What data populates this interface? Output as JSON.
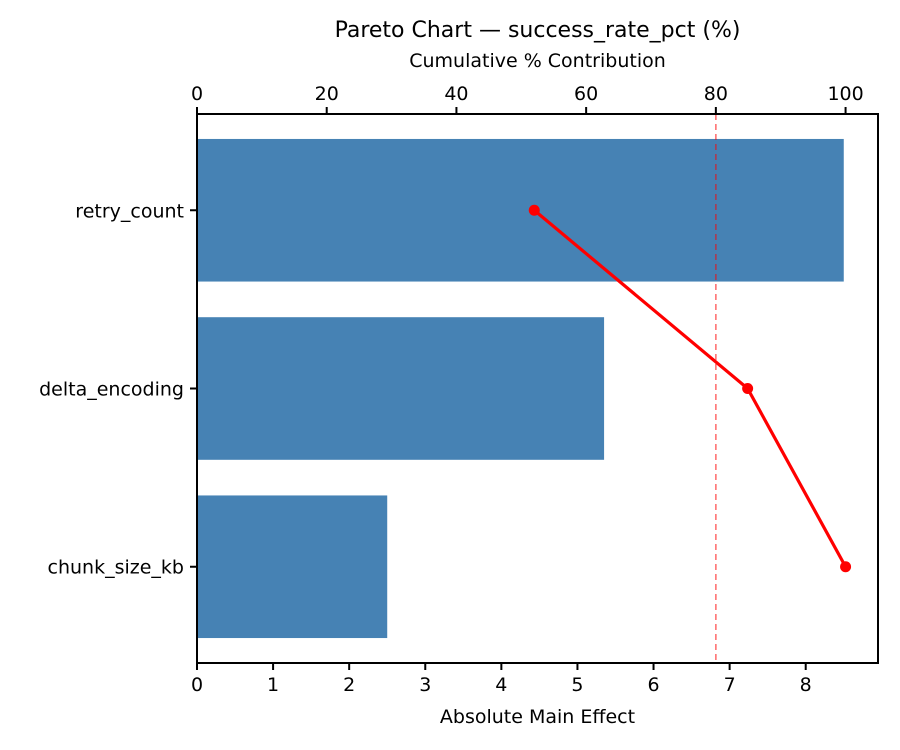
{
  "chart_data": {
    "type": "bar",
    "subtype": "pareto",
    "orientation": "horizontal",
    "title": "Pareto Chart — success_rate_pct (%)",
    "top_axis_label": "Cumulative % Contribution",
    "bottom_axis_label": "Absolute Main Effect",
    "categories": [
      "retry_count",
      "delta_encoding",
      "chunk_size_kb"
    ],
    "series": [
      {
        "name": "Absolute Main Effect",
        "kind": "bar",
        "values": [
          8.5,
          5.35,
          2.5
        ],
        "color": "#4682B4",
        "axis": "bottom"
      },
      {
        "name": "Cumulative % Contribution",
        "kind": "line",
        "values": [
          52.0,
          84.9,
          100.0
        ],
        "color": "#ff0000",
        "marker": "circle",
        "axis": "top"
      }
    ],
    "bottom_axis": {
      "ticks": [
        0,
        1,
        2,
        3,
        4,
        5,
        6,
        7,
        8
      ],
      "lim": [
        0,
        8.95
      ]
    },
    "top_axis": {
      "ticks": [
        0,
        20,
        40,
        60,
        80,
        100
      ],
      "lim": [
        0,
        105
      ]
    },
    "threshold_line": {
      "value": 80,
      "color": "#ff0000",
      "opacity": 0.55,
      "style": "dashed",
      "axis": "top"
    },
    "grid": false,
    "legend": "none",
    "bar_fraction": 0.8
  }
}
